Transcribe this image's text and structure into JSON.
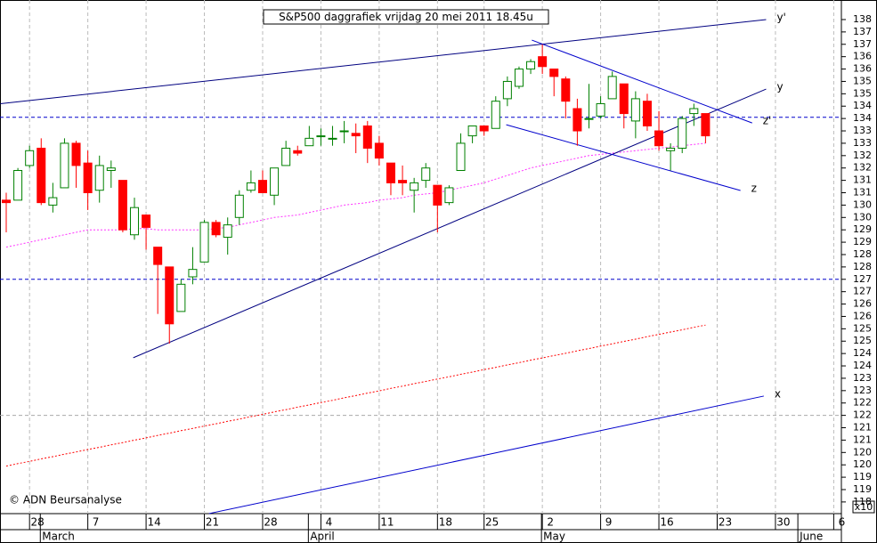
{
  "chart_data": {
    "type": "candlestick",
    "title": "S&P500 daggrafiek vrijdag 20 mei 2011 18.45u",
    "copyright": "© ADN Beursanalyse",
    "unit_label": "x10",
    "categories": [
      null,
      null,
      "28",
      null,
      null,
      null,
      null,
      "7",
      null,
      null,
      null,
      null,
      "14",
      null,
      null,
      null,
      null,
      "21",
      null,
      null,
      null,
      null,
      "28",
      null,
      null,
      null,
      null,
      "4",
      null,
      null,
      null,
      null,
      "11",
      null,
      null,
      null,
      null,
      "18",
      null,
      null,
      null,
      "25",
      null,
      null,
      null,
      null,
      "2",
      null,
      null,
      null,
      null,
      "9",
      null,
      null,
      null,
      null,
      "16",
      null,
      null,
      null,
      null,
      "23",
      null,
      null,
      null,
      null,
      "30",
      null,
      null,
      null,
      null,
      "6"
    ],
    "months": [
      "March",
      "April",
      "May",
      "June"
    ],
    "open": [
      130.7,
      130.7,
      132.1,
      132.8,
      130.5,
      131.2,
      133.0,
      132.2,
      131.1,
      131.9,
      131.5,
      129.3,
      130.1,
      128.8,
      128.0,
      126.2,
      127.6,
      128.2,
      129.8,
      129.2,
      130.0,
      131.1,
      131.5,
      130.9,
      132.1,
      132.7,
      132.9,
      133.3,
      133.2,
      133.5,
      133.4,
      133.7,
      133.0,
      132.2,
      131.5,
      131.1,
      131.5,
      131.3,
      130.6,
      131.9,
      133.3,
      133.7,
      133.6,
      134.8,
      135.3,
      136.0,
      136.5,
      136.0,
      135.6,
      134.4,
      134.0,
      134.1,
      134.8,
      135.4,
      133.9,
      134.7,
      133.5,
      132.7,
      132.8,
      134.2,
      134.2,
      null,
      null,
      null,
      null,
      null,
      null,
      null,
      null,
      null,
      null,
      null
    ],
    "high": [
      131.0,
      132.0,
      132.9,
      133.2,
      131.4,
      133.2,
      133.1,
      132.7,
      132.5,
      132.3,
      131.5,
      130.8,
      130.1,
      128.8,
      128.0,
      127.5,
      128.8,
      129.9,
      129.9,
      130.0,
      131.1,
      131.9,
      131.9,
      132.0,
      133.1,
      132.9,
      133.7,
      133.6,
      133.7,
      133.9,
      133.8,
      133.9,
      133.3,
      132.2,
      132.1,
      131.6,
      132.2,
      131.3,
      131.3,
      133.4,
      133.7,
      133.7,
      134.9,
      135.7,
      136.1,
      136.4,
      137.0,
      136.0,
      135.7,
      134.8,
      135.4,
      134.9,
      135.9,
      135.4,
      135.1,
      135.0,
      134.3,
      133.0,
      134.1,
      134.6,
      134.2,
      null,
      null,
      null,
      null,
      null,
      null,
      null,
      null,
      null,
      null,
      null
    ],
    "low": [
      129.4,
      130.7,
      132.0,
      130.5,
      130.2,
      131.2,
      131.2,
      130.3,
      130.6,
      131.2,
      129.4,
      129.1,
      128.7,
      126.1,
      124.9,
      126.2,
      127.3,
      128.2,
      129.2,
      128.5,
      129.7,
      131.0,
      131.0,
      130.5,
      132.1,
      132.5,
      132.9,
      132.9,
      132.9,
      133.0,
      132.6,
      132.2,
      132.1,
      130.9,
      130.9,
      130.2,
      131.2,
      129.4,
      130.5,
      131.9,
      133.0,
      133.3,
      133.6,
      134.5,
      135.2,
      135.8,
      135.8,
      134.9,
      134.0,
      132.9,
      133.6,
      134.0,
      134.8,
      133.6,
      133.2,
      133.5,
      132.7,
      131.9,
      132.6,
      133.7,
      133.0,
      null,
      null,
      null,
      null,
      null,
      null,
      null,
      null,
      null,
      null,
      null
    ],
    "close": [
      130.6,
      131.9,
      132.7,
      130.6,
      130.8,
      133.0,
      132.1,
      131.0,
      132.1,
      132.0,
      129.5,
      130.4,
      129.6,
      128.1,
      125.7,
      127.3,
      127.9,
      129.8,
      129.3,
      129.7,
      130.9,
      131.4,
      131.0,
      132.0,
      132.8,
      132.6,
      133.2,
      133.3,
      133.2,
      133.5,
      133.3,
      132.8,
      132.4,
      131.4,
      131.4,
      131.4,
      132.0,
      130.5,
      131.2,
      133.0,
      133.7,
      133.5,
      134.7,
      135.5,
      136.0,
      136.3,
      136.1,
      135.7,
      134.7,
      133.5,
      134.0,
      134.6,
      135.7,
      134.2,
      134.8,
      133.7,
      132.9,
      132.8,
      134.0,
      134.4,
      133.3,
      null,
      null,
      null,
      null,
      null,
      null,
      null,
      null,
      null,
      null,
      null
    ],
    "up_color": "#008000",
    "down_color": "#ff0000",
    "lines": [
      {
        "color": "#ff33ff",
        "values": [
          128.8,
          128.9,
          129.0,
          129.1,
          129.2,
          129.3,
          129.4,
          129.5,
          129.5,
          129.5,
          129.5,
          129.55,
          129.55,
          129.5,
          129.5,
          129.5,
          129.5,
          129.5,
          129.55,
          129.6,
          129.7,
          129.8,
          129.9,
          130.0,
          130.05,
          130.1,
          130.2,
          130.3,
          130.4,
          130.5,
          130.55,
          130.6,
          130.7,
          130.75,
          130.8,
          130.9,
          130.95,
          131.0,
          131.1,
          131.2,
          131.3,
          131.4,
          131.55,
          131.7,
          131.85,
          132.0,
          132.1,
          132.2,
          132.3,
          132.4,
          132.5,
          132.55,
          132.6,
          132.65,
          132.7,
          132.75,
          132.8,
          132.85,
          132.9,
          132.95,
          133.0,
          null,
          null,
          null,
          null,
          null,
          null,
          null,
          null,
          null,
          null,
          null
        ]
      },
      {
        "color": "#ff0000",
        "values": [
          119.95,
          120.05,
          120.14,
          120.24,
          120.33,
          120.43,
          120.52,
          120.62,
          120.71,
          120.81,
          120.9,
          121.0,
          121.09,
          121.19,
          121.28,
          121.38,
          121.47,
          121.57,
          121.66,
          121.76,
          121.85,
          121.95,
          122.04,
          122.14,
          122.23,
          122.33,
          122.42,
          122.52,
          122.61,
          122.71,
          122.8,
          122.9,
          122.99,
          123.09,
          123.18,
          123.28,
          123.37,
          123.47,
          123.56,
          123.66,
          123.75,
          123.85,
          123.94,
          124.04,
          124.13,
          124.23,
          124.32,
          124.42,
          124.51,
          124.61,
          124.7,
          124.8,
          124.89,
          124.99,
          125.08,
          125.18,
          125.27,
          125.37,
          125.46,
          125.56,
          125.65,
          null,
          null,
          null,
          null,
          null,
          null,
          null,
          null,
          null,
          null,
          null
        ]
      }
    ],
    "trendlines": [
      {
        "name": "y'",
        "color": "#000080",
        "x": [
          -0.5,
          65.2
        ],
        "y": [
          134.6,
          138.0
        ]
      },
      {
        "name": "y",
        "color": "#000080",
        "x": [
          10.9,
          65.2
        ],
        "y": [
          124.33,
          135.19
        ]
      },
      {
        "name": "z'",
        "color": "#0000cc",
        "x": [
          45.1,
          64.0
        ],
        "y": [
          137.17,
          133.82
        ]
      },
      {
        "name": "z",
        "color": "#0000cc",
        "x": [
          42.9,
          63.0
        ],
        "y": [
          133.75,
          131.09
        ]
      },
      {
        "name": "x",
        "color": "#0000cc",
        "x": [
          17.4,
          65.0
        ],
        "y": [
          118.03,
          122.78
        ]
      }
    ],
    "hlines": [
      134.05,
      127.5
    ],
    "hline_color": "#0000cc",
    "ylim": [
      118.1,
      138.6
    ],
    "yticks": [
      138,
      {
        "value": 137.5,
        "label": "137"
      },
      137,
      {
        "value": 136.5,
        "label": "136"
      },
      136,
      {
        "value": 135.5,
        "label": "135"
      },
      135,
      {
        "value": 134.5,
        "label": "134"
      },
      134,
      {
        "value": 133.5,
        "label": "133"
      },
      133,
      {
        "value": 132.5,
        "label": "132"
      },
      132,
      {
        "value": 131.5,
        "label": "131"
      },
      131,
      {
        "value": 130.5,
        "label": "130"
      },
      130,
      {
        "value": 129.5,
        "label": "129"
      },
      129,
      {
        "value": 128.5,
        "label": "128"
      },
      128,
      {
        "value": 127.5,
        "label": "127"
      },
      127,
      {
        "value": 126.5,
        "label": "126"
      },
      126,
      {
        "value": 125.5,
        "label": "125"
      },
      125,
      {
        "value": 124.5,
        "label": "124"
      },
      124,
      {
        "value": 123.5,
        "label": "123"
      },
      123,
      {
        "value": 122.5,
        "label": "122"
      },
      122,
      {
        "value": 121.5,
        "label": "121"
      },
      121,
      {
        "value": 120.5,
        "label": "120"
      },
      120,
      {
        "value": 119.5,
        "label": "119"
      },
      119,
      {
        "value": 118.5,
        "label": "118"
      }
    ],
    "grid": true
  }
}
